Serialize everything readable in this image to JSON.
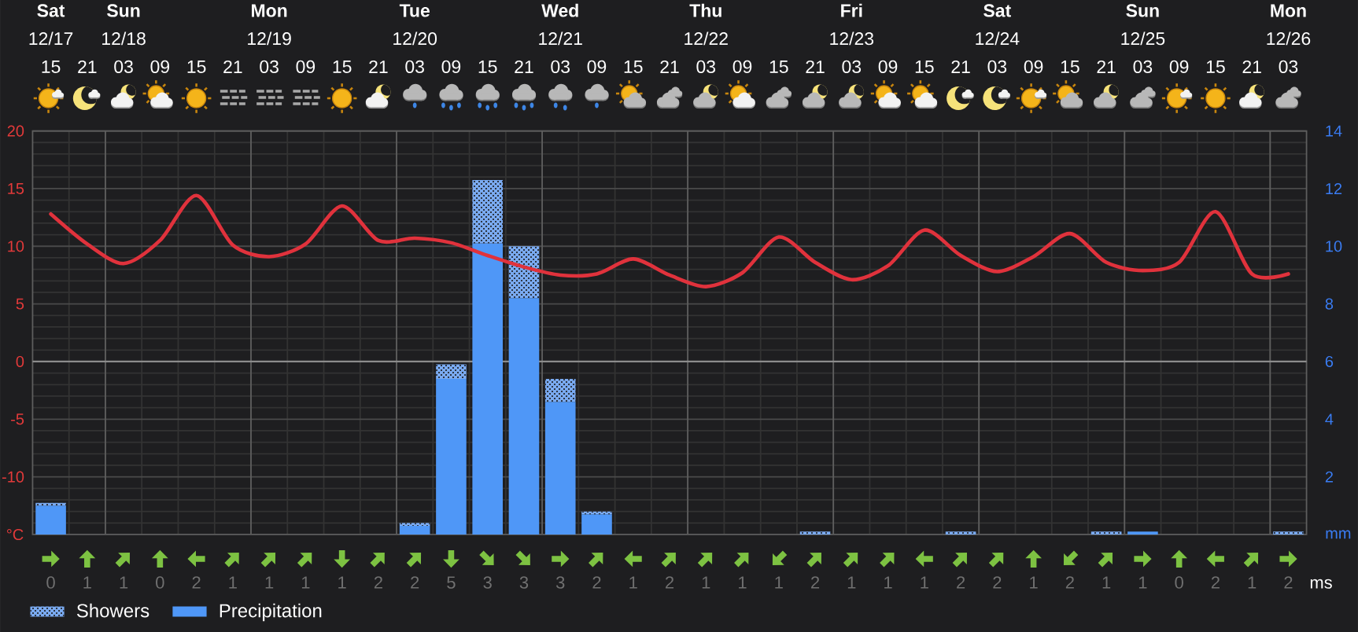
{
  "chart_data": [
    {
      "type": "bar",
      "categories": [
        "**Sat** 12/17 15",
        "21",
        "**Sun** 12/18 03",
        "09",
        "15",
        "21",
        "**Mon** 12/19 03",
        "09",
        "15",
        "21",
        "**Tue** 12/20 03",
        "09",
        "15",
        "21",
        "**Wed** 12/21 03",
        "09",
        "15",
        "21",
        "**Thu** 12/22 03",
        "09",
        "15",
        "21",
        "**Fri** 12/23 03",
        "09",
        "15",
        "21",
        "**Sat** 12/24 03",
        "09",
        "15",
        "21",
        "**Sun** 12/25 03",
        "09",
        "15",
        "21",
        "**Mon** 12/26 03"
      ],
      "series": [
        {
          "type": "line",
          "color": "#e0323c",
          "values": [
            12.8,
            10.2,
            8.5,
            10.5,
            14.4,
            10.1,
            9.1,
            10.2,
            13.5,
            10.5,
            10.7,
            10.3,
            9.2,
            8.2,
            7.5,
            7.6,
            8.9,
            7.5,
            6.5,
            7.7,
            10.8,
            8.6,
            7.1,
            8.3,
            11.4,
            9.2,
            7.8,
            9.1,
            11.1,
            8.6,
            7.9,
            8.6,
            13.0,
            7.6,
            7.6
          ]
        },
        {
          "name": "Precipitation",
          "color": "#4f97f7",
          "axis": "y2",
          "values": [
            1.0,
            0,
            0,
            0,
            0,
            0,
            0,
            0,
            0,
            0,
            0.3,
            5.4,
            10.1,
            8.2,
            4.6,
            0.7,
            0,
            0,
            0,
            0,
            0,
            0,
            0,
            0,
            0,
            0,
            0,
            0,
            0,
            0,
            0.1,
            0,
            0,
            0,
            0
          ]
        },
        {
          "name": "Showers",
          "color": "#7aaaf0",
          "axis": "y2",
          "values": [
            0.1,
            0,
            0,
            0,
            0,
            0,
            0,
            0,
            0,
            0,
            0.1,
            0.5,
            2.2,
            1.8,
            0.8,
            0.1,
            0,
            0,
            0,
            0,
            0,
            0.1,
            0,
            0,
            0,
            0.1,
            0,
            0,
            0,
            0.1,
            0,
            0,
            0,
            0,
            0.1
          ]
        }
      ],
      "stacked": true,
      "ylim": [
        -15,
        20
      ],
      "yticks": [
        -10,
        -5,
        0,
        5,
        10,
        15,
        20
      ],
      "ylabel": "°C",
      "y2lim": [
        0,
        14
      ],
      "y2ticks": [
        2,
        4,
        6,
        8,
        10,
        12,
        14
      ],
      "y2label": "mm",
      "grid": true,
      "legend": "bottom left",
      "ref_lines": [
        {
          "axis": "y",
          "value": 0,
          "color": "#8c8c8c"
        }
      ]
    },
    {
      "type": "other",
      "values": [
        0,
        1,
        1,
        0,
        2,
        1,
        1,
        1,
        1,
        2,
        2,
        5,
        3,
        3,
        3,
        2,
        1,
        2,
        1,
        1,
        1,
        2,
        1,
        1,
        1,
        2,
        2,
        1,
        2,
        1,
        1,
        0,
        2,
        1,
        2
      ],
      "data_labels": true,
      "annotations": [
        "ms"
      ]
    }
  ]
}
